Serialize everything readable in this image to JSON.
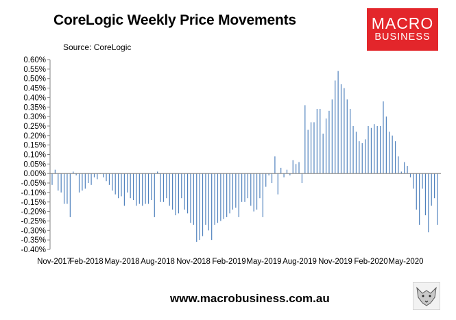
{
  "header": {
    "title": "CoreLogic Weekly Price Movements",
    "source": "Source: CoreLogic"
  },
  "logo": {
    "line1": "MACRO",
    "line2": "BUSINESS",
    "color": "#e3262b"
  },
  "footer": {
    "url": "www.macrobusiness.com.au"
  },
  "chart_data": {
    "type": "bar",
    "title": "CoreLogic Weekly Price Movements",
    "xlabel": "",
    "ylabel": "",
    "ylim": [
      -0.4,
      0.6
    ],
    "y_ticks": [
      "0.60%",
      "0.55%",
      "0.50%",
      "0.45%",
      "0.40%",
      "0.35%",
      "0.30%",
      "0.25%",
      "0.20%",
      "0.15%",
      "0.10%",
      "0.05%",
      "0.00%",
      "-0.05%",
      "-0.10%",
      "-0.15%",
      "-0.20%",
      "-0.25%",
      "-0.30%",
      "-0.35%",
      "-0.40%"
    ],
    "x_tick_labels": [
      "Nov-2017",
      "Feb-2018",
      "May-2018",
      "Aug-2018",
      "Nov-2018",
      "Feb-2019",
      "May-2019",
      "Aug-2019",
      "Nov-2019",
      "Feb-2020",
      "May-2020"
    ],
    "grid": false,
    "bar_color": "#4f81bd",
    "unit": "%",
    "series": [
      {
        "values": [
          -0.06,
          0.02,
          -0.09,
          -0.1,
          -0.16,
          -0.16,
          -0.23,
          0.01,
          -0.01,
          -0.1,
          -0.09,
          -0.08,
          -0.05,
          -0.06,
          -0.02,
          -0.03,
          0.0,
          -0.02,
          -0.04,
          -0.06,
          -0.09,
          -0.11,
          -0.13,
          -0.12,
          -0.17,
          -0.1,
          -0.13,
          -0.14,
          -0.17,
          -0.16,
          -0.17,
          -0.16,
          -0.16,
          -0.14,
          -0.23,
          0.01,
          -0.15,
          -0.15,
          -0.13,
          -0.17,
          -0.19,
          -0.22,
          -0.21,
          -0.13,
          -0.19,
          -0.21,
          -0.26,
          -0.27,
          -0.36,
          -0.35,
          -0.33,
          -0.27,
          -0.3,
          -0.35,
          -0.27,
          -0.26,
          -0.25,
          -0.24,
          -0.23,
          -0.21,
          -0.19,
          -0.18,
          -0.23,
          -0.15,
          -0.15,
          -0.13,
          -0.17,
          -0.2,
          -0.19,
          -0.13,
          -0.23,
          -0.07,
          -0.01,
          -0.05,
          0.09,
          -0.11,
          0.03,
          -0.02,
          0.02,
          -0.01,
          0.07,
          0.05,
          0.06,
          -0.05,
          0.36,
          0.23,
          0.27,
          0.27,
          0.34,
          0.34,
          0.21,
          0.29,
          0.33,
          0.39,
          0.49,
          0.54,
          0.47,
          0.45,
          0.39,
          0.34,
          0.25,
          0.22,
          0.17,
          0.16,
          0.18,
          0.25,
          0.24,
          0.26,
          0.25,
          0.25,
          0.38,
          0.3,
          0.22,
          0.2,
          0.17,
          0.09,
          0.01,
          0.06,
          0.04,
          -0.02,
          -0.08,
          -0.19,
          -0.27,
          -0.08,
          -0.22,
          -0.31,
          -0.17,
          -0.13,
          -0.27
        ]
      }
    ]
  }
}
